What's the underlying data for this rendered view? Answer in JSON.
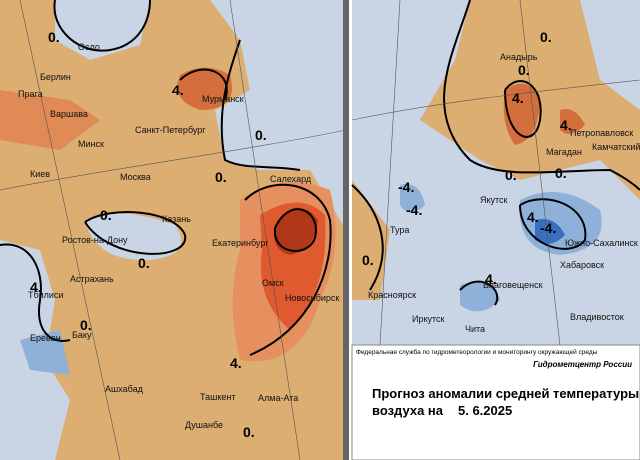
{
  "left_map": {
    "cities": [
      "Осло",
      "Берлин",
      "Прага",
      "Варшава",
      "Мурманск",
      "Санкт-Петербург",
      "Минск",
      "Киев",
      "Москва",
      "Казань",
      "Ростов-на-Дону",
      "Екатеринбург",
      "Салехард",
      "Астрахань",
      "Омск",
      "Новосибирск",
      "Тбилиси",
      "Ереван",
      "Баку",
      "Ашхабад",
      "Ташкент",
      "Алма-Ата",
      "Душанбе"
    ],
    "contour_labels": [
      "0.",
      "4.",
      "0.",
      "0.",
      "0.",
      "0.",
      "4.",
      "0.",
      "4.",
      "0."
    ]
  },
  "right_map": {
    "cities": [
      "Анадырь",
      "Петропавловск",
      "Камчатский",
      "Магадан",
      "Якутск",
      "Тура",
      "Южно-Сахалинск",
      "Хабаровск",
      "Благовещенск",
      "Красноярск",
      "Иркутск",
      "Чита",
      "Владивосток"
    ],
    "contour_labels": [
      "0.",
      "0.",
      "4.",
      "4.",
      "0.",
      "0.",
      "-4.",
      "-4.",
      "4.",
      "-4.",
      "4.",
      "0."
    ]
  },
  "footer": {
    "agency": "Федеральная служба по гидрометеорологии и мониторингу окружающей среды",
    "center": "Гидрометцентр России",
    "title_line1": "Прогноз аномалии средней температуры",
    "title_line2": "воздуха на",
    "date": "5. 6.2025"
  }
}
